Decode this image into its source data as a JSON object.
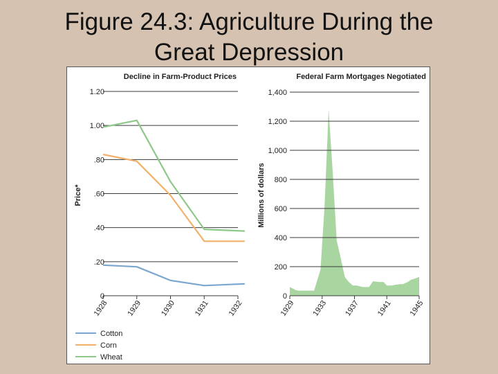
{
  "slide": {
    "title_line1": "Figure 24.3: Agriculture During the",
    "title_line2": "Great Depression"
  },
  "colors": {
    "background": "#d6c2b0",
    "cotton": "#7aa6cf",
    "corn": "#f2b06a",
    "wheat": "#8cc88a",
    "mortgage_fill": "#a9d6a0",
    "grid": "#3a3a3a"
  },
  "chart_data": [
    {
      "type": "line",
      "title": "Decline in Farm-Product Prices",
      "xlabel": "",
      "ylabel": "Price*",
      "categories": [
        "1928",
        "1929",
        "1930",
        "1931",
        "1932"
      ],
      "y_tick_labels": [
        "0",
        ".20",
        ".40",
        ".60",
        ".80",
        "1.00",
        "1.20"
      ],
      "ylim": [
        0,
        1.2
      ],
      "series": [
        {
          "name": "Cotton",
          "color": "#7aa6cf",
          "x": [
            1928,
            1929,
            1930,
            1931,
            1932.2
          ],
          "values": [
            0.18,
            0.17,
            0.09,
            0.06,
            0.07
          ]
        },
        {
          "name": "Corn",
          "color": "#f2b06a",
          "x": [
            1928,
            1929,
            1930,
            1931,
            1932.2
          ],
          "values": [
            0.83,
            0.79,
            0.59,
            0.32,
            0.32
          ]
        },
        {
          "name": "Wheat",
          "color": "#8cc88a",
          "x": [
            1928,
            1929,
            1930,
            1931,
            1932.2
          ],
          "values": [
            0.99,
            1.03,
            0.67,
            0.39,
            0.38
          ]
        }
      ],
      "legend": [
        "Cotton",
        "Corn",
        "Wheat"
      ]
    },
    {
      "type": "area",
      "title": "Federal Farm Mortgages Negotiated",
      "xlabel": "",
      "ylabel": "Millions of dollars",
      "categories": [
        "1929",
        "1933",
        "1937",
        "1941",
        "1945"
      ],
      "y_tick_labels": [
        "0",
        "200",
        "400",
        "600",
        "800",
        "1,000",
        "1,200",
        "1,400"
      ],
      "ylim": [
        0,
        1400
      ],
      "x": [
        1929,
        1929.7,
        1930,
        1931,
        1932,
        1932.8,
        1933.3,
        1933.8,
        1934.3,
        1934.8,
        1935.3,
        1935.8,
        1936.3,
        1936.8,
        1937.3,
        1938,
        1938.8,
        1939.3,
        1940,
        1940.6,
        1941,
        1941.6,
        1942,
        1942.6,
        1943,
        1943.6,
        1944,
        1944.6,
        1945
      ],
      "values": [
        60,
        40,
        35,
        35,
        35,
        180,
        620,
        1280,
        860,
        380,
        260,
        130,
        95,
        70,
        70,
        60,
        60,
        100,
        95,
        95,
        70,
        70,
        75,
        80,
        80,
        95,
        110,
        120,
        130
      ],
      "series": [
        {
          "name": "Federal Farm Mortgages",
          "color": "#a9d6a0"
        }
      ]
    }
  ]
}
